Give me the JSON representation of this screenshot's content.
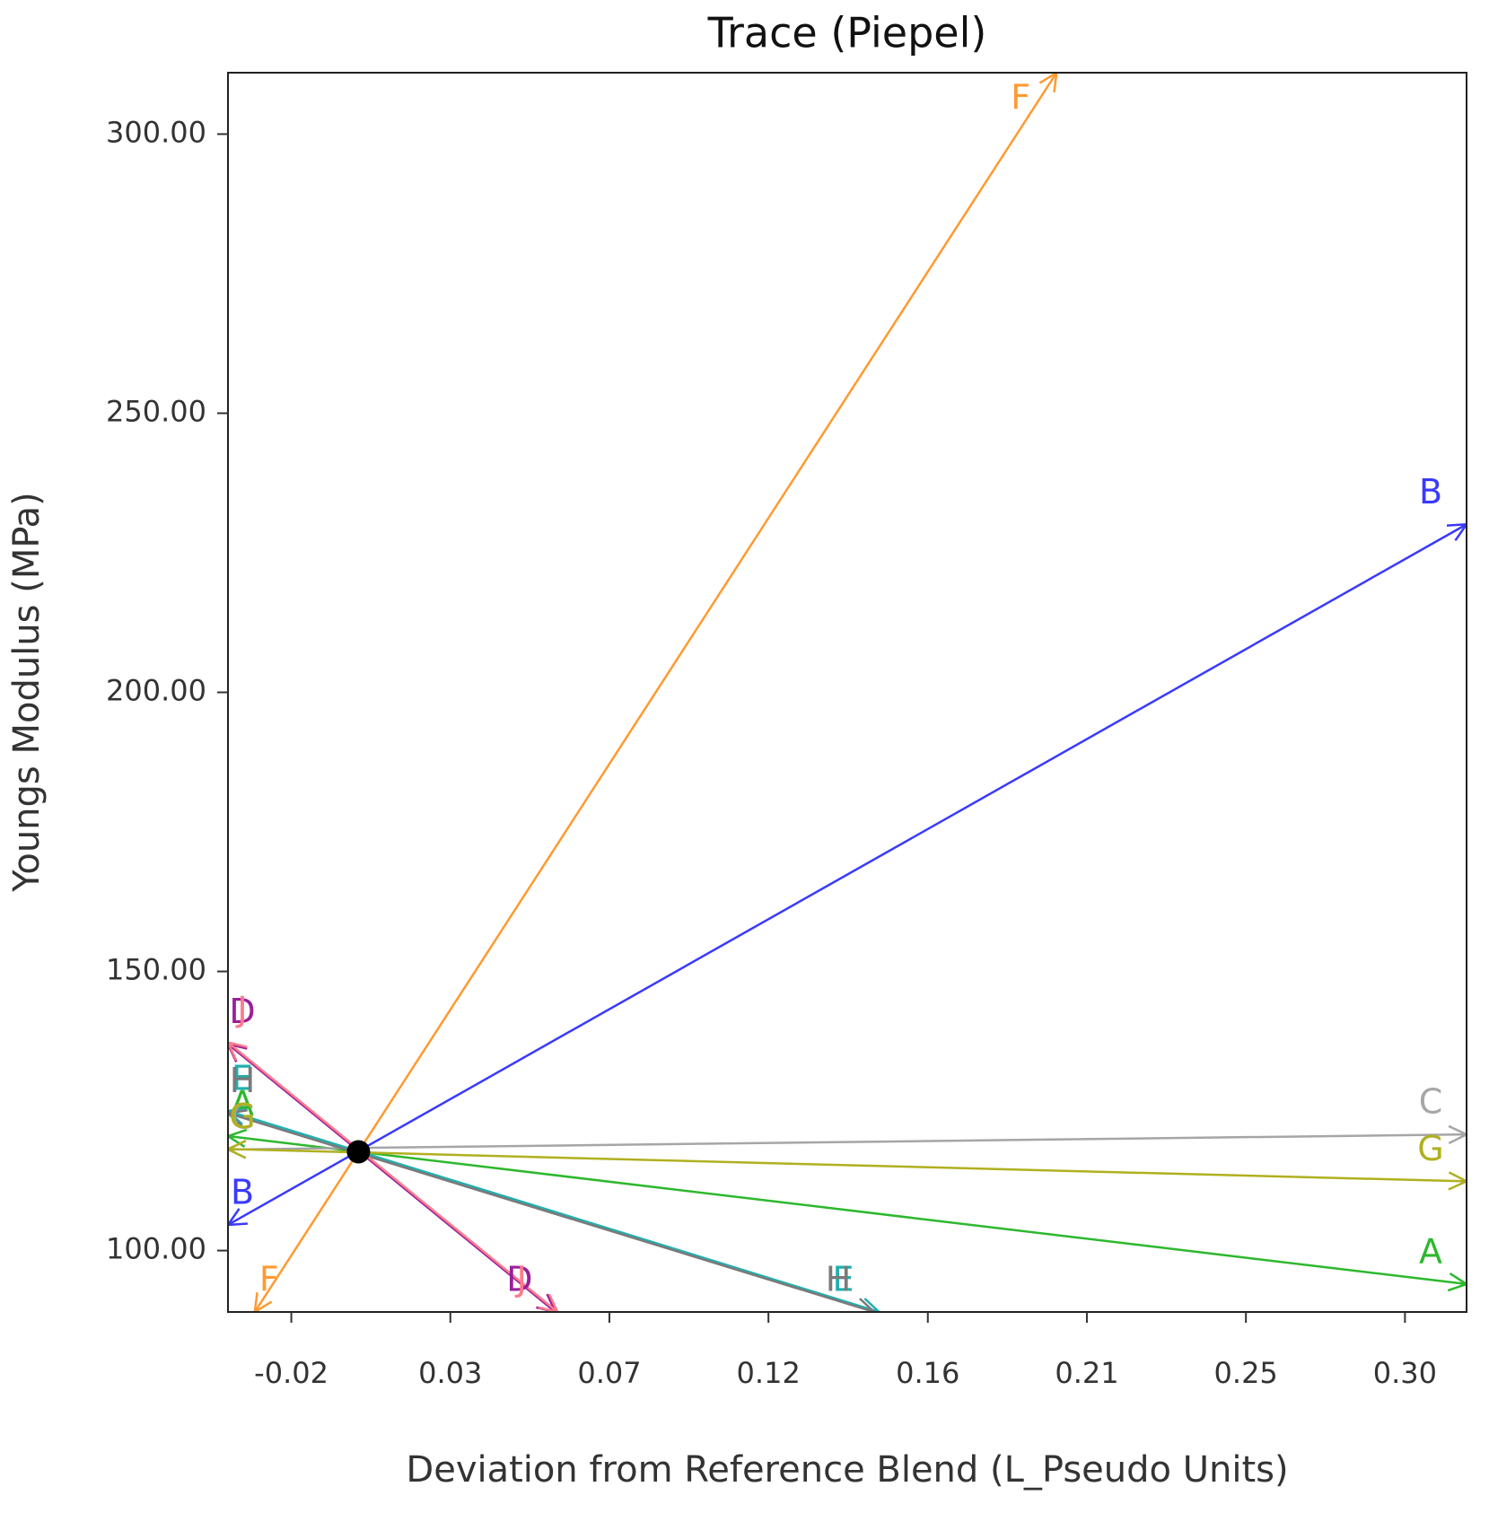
{
  "chart_data": {
    "type": "line",
    "title": "Trace (Piepel)",
    "x_label": "Deviation from Reference Blend (L_Pseudo Units)",
    "y_label": "Youngs Modulus (MPa)",
    "xlim": [
      -0.0382,
      0.3177
    ],
    "ylim": [
      89.0,
      311.0
    ],
    "xticks": [
      {
        "value": -0.02,
        "label": "-0.02"
      },
      {
        "value": 0.0257,
        "label": "0.03"
      },
      {
        "value": 0.0714,
        "label": "0.07"
      },
      {
        "value": 0.1171,
        "label": "0.12"
      },
      {
        "value": 0.1629,
        "label": "0.16"
      },
      {
        "value": 0.2086,
        "label": "0.21"
      },
      {
        "value": 0.2543,
        "label": "0.25"
      },
      {
        "value": 0.3,
        "label": "0.30"
      }
    ],
    "yticks": [
      {
        "value": 100,
        "label": "100.00"
      },
      {
        "value": 150,
        "label": "150.00"
      },
      {
        "value": 200,
        "label": "200.00"
      },
      {
        "value": 250,
        "label": "250.00"
      },
      {
        "value": 300,
        "label": "300.00"
      }
    ],
    "reference_point": {
      "x": -0.0007,
      "y": 117.7
    },
    "series": [
      {
        "name": "A",
        "color": "#2db82d",
        "x": [
          -0.0382,
          0.3177
        ],
        "values": [
          120.5,
          94.0
        ]
      },
      {
        "name": "B",
        "color": "#3a3aff",
        "x": [
          -0.0382,
          0.3177
        ],
        "values": [
          104.6,
          230.1
        ]
      },
      {
        "name": "C",
        "color": "#a6a6a6",
        "x": [
          -0.0382,
          0.3177
        ],
        "values": [
          118.1,
          120.8
        ]
      },
      {
        "name": "D",
        "color": "#9a1f9a",
        "x": [
          -0.0382,
          0.0559
        ],
        "values": [
          137.0,
          89.0
        ]
      },
      {
        "name": "E",
        "color": "#1fb0b0",
        "x": [
          -0.0382,
          0.1489
        ],
        "values": [
          125.0,
          89.0
        ]
      },
      {
        "name": "F",
        "color": "#ff9a30",
        "x": [
          -0.0305,
          0.1999
        ],
        "values": [
          89.0,
          311.0
        ]
      },
      {
        "name": "G",
        "color": "#b0b020",
        "x": [
          -0.0382,
          0.3177
        ],
        "values": [
          118.2,
          112.4
        ]
      },
      {
        "name": "H",
        "color": "#7a7a7a",
        "x": [
          -0.0382,
          0.1475
        ],
        "values": [
          124.6,
          89.0
        ]
      },
      {
        "name": "J",
        "color": "#ff7a8c",
        "x": [
          -0.0382,
          0.0565
        ],
        "values": [
          137.3,
          89.0
        ]
      }
    ]
  }
}
